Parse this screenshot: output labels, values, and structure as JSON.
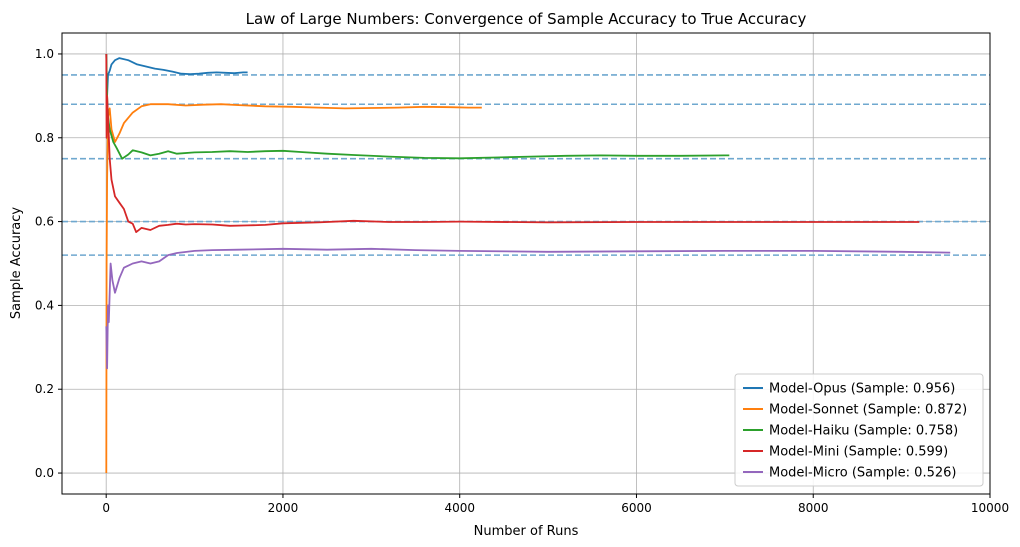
{
  "chart_data": {
    "type": "line",
    "title": "Law of Large Numbers: Convergence of Sample Accuracy to True Accuracy",
    "xlabel": "Number of Runs",
    "ylabel": "Sample Accuracy",
    "xlim": [
      -500,
      10000
    ],
    "ylim": [
      -0.05,
      1.05
    ],
    "xticks": [
      0,
      2000,
      4000,
      6000,
      8000,
      10000
    ],
    "xtick_labels": [
      "0",
      "2000",
      "4000",
      "6000",
      "8000",
      "10000"
    ],
    "yticks": [
      0.0,
      0.2,
      0.4,
      0.6,
      0.8,
      1.0
    ],
    "ytick_labels": [
      "0.0",
      "0.2",
      "0.4",
      "0.6",
      "0.8",
      "1.0"
    ],
    "grid": true,
    "legend_position": "lower-right",
    "reference_lines": {
      "color": "#6fa8cf",
      "style": "dashed",
      "values": [
        0.95,
        0.88,
        0.75,
        0.6,
        0.52
      ]
    },
    "series": [
      {
        "name": "Model-Opus (Sample: 0.956)",
        "color": "#1f77b4",
        "points": [
          [
            1,
            1.0
          ],
          [
            10,
            0.9
          ],
          [
            20,
            0.95
          ],
          [
            40,
            0.96
          ],
          [
            60,
            0.975
          ],
          [
            100,
            0.985
          ],
          [
            150,
            0.99
          ],
          [
            250,
            0.985
          ],
          [
            350,
            0.975
          ],
          [
            450,
            0.97
          ],
          [
            550,
            0.965
          ],
          [
            650,
            0.962
          ],
          [
            750,
            0.958
          ],
          [
            850,
            0.953
          ],
          [
            950,
            0.952
          ],
          [
            1050,
            0.953
          ],
          [
            1150,
            0.955
          ],
          [
            1250,
            0.956
          ],
          [
            1350,
            0.955
          ],
          [
            1450,
            0.954
          ],
          [
            1550,
            0.956
          ],
          [
            1600,
            0.956
          ]
        ]
      },
      {
        "name": "Model-Sonnet (Sample: 0.872)",
        "color": "#ff7f0e",
        "points": [
          [
            1,
            0.0
          ],
          [
            5,
            0.5
          ],
          [
            10,
            0.7
          ],
          [
            20,
            0.85
          ],
          [
            40,
            0.87
          ],
          [
            60,
            0.82
          ],
          [
            100,
            0.79
          ],
          [
            150,
            0.81
          ],
          [
            200,
            0.835
          ],
          [
            300,
            0.86
          ],
          [
            400,
            0.875
          ],
          [
            500,
            0.88
          ],
          [
            700,
            0.88
          ],
          [
            900,
            0.877
          ],
          [
            1100,
            0.879
          ],
          [
            1300,
            0.88
          ],
          [
            1500,
            0.878
          ],
          [
            1800,
            0.875
          ],
          [
            2100,
            0.874
          ],
          [
            2400,
            0.872
          ],
          [
            2700,
            0.87
          ],
          [
            3000,
            0.871
          ],
          [
            3300,
            0.872
          ],
          [
            3600,
            0.874
          ],
          [
            3900,
            0.873
          ],
          [
            4100,
            0.872
          ],
          [
            4250,
            0.872
          ]
        ]
      },
      {
        "name": "Model-Haiku (Sample: 0.758)",
        "color": "#2ca02c",
        "points": [
          [
            1,
            1.0
          ],
          [
            10,
            0.9
          ],
          [
            20,
            0.85
          ],
          [
            40,
            0.82
          ],
          [
            80,
            0.79
          ],
          [
            120,
            0.775
          ],
          [
            180,
            0.75
          ],
          [
            250,
            0.76
          ],
          [
            300,
            0.77
          ],
          [
            400,
            0.765
          ],
          [
            500,
            0.758
          ],
          [
            600,
            0.762
          ],
          [
            700,
            0.768
          ],
          [
            800,
            0.762
          ],
          [
            1000,
            0.765
          ],
          [
            1200,
            0.766
          ],
          [
            1400,
            0.768
          ],
          [
            1600,
            0.766
          ],
          [
            1800,
            0.768
          ],
          [
            2000,
            0.769
          ],
          [
            2200,
            0.766
          ],
          [
            2500,
            0.762
          ],
          [
            2800,
            0.759
          ],
          [
            3200,
            0.755
          ],
          [
            3600,
            0.752
          ],
          [
            4000,
            0.751
          ],
          [
            4400,
            0.753
          ],
          [
            4800,
            0.755
          ],
          [
            5200,
            0.757
          ],
          [
            5600,
            0.758
          ],
          [
            6000,
            0.757
          ],
          [
            6500,
            0.757
          ],
          [
            7000,
            0.758
          ],
          [
            7050,
            0.758
          ]
        ]
      },
      {
        "name": "Model-Mini (Sample: 0.599)",
        "color": "#d62728",
        "points": [
          [
            1,
            1.0
          ],
          [
            5,
            0.8
          ],
          [
            10,
            0.9
          ],
          [
            20,
            0.85
          ],
          [
            40,
            0.75
          ],
          [
            60,
            0.7
          ],
          [
            100,
            0.66
          ],
          [
            150,
            0.645
          ],
          [
            200,
            0.63
          ],
          [
            250,
            0.6
          ],
          [
            300,
            0.595
          ],
          [
            340,
            0.575
          ],
          [
            400,
            0.585
          ],
          [
            500,
            0.58
          ],
          [
            600,
            0.59
          ],
          [
            700,
            0.592
          ],
          [
            800,
            0.595
          ],
          [
            900,
            0.593
          ],
          [
            1000,
            0.594
          ],
          [
            1200,
            0.593
          ],
          [
            1400,
            0.59
          ],
          [
            1600,
            0.591
          ],
          [
            1800,
            0.592
          ],
          [
            2000,
            0.596
          ],
          [
            2400,
            0.598
          ],
          [
            2800,
            0.602
          ],
          [
            3200,
            0.599
          ],
          [
            3600,
            0.599
          ],
          [
            4000,
            0.6
          ],
          [
            5000,
            0.598
          ],
          [
            6000,
            0.599
          ],
          [
            7000,
            0.599
          ],
          [
            8000,
            0.599
          ],
          [
            9000,
            0.599
          ],
          [
            9200,
            0.599
          ]
        ]
      },
      {
        "name": "Model-Micro (Sample: 0.526)",
        "color": "#9467bd",
        "points": [
          [
            1,
            0.35
          ],
          [
            10,
            0.25
          ],
          [
            20,
            0.4
          ],
          [
            30,
            0.36
          ],
          [
            50,
            0.5
          ],
          [
            70,
            0.46
          ],
          [
            100,
            0.43
          ],
          [
            150,
            0.465
          ],
          [
            200,
            0.49
          ],
          [
            300,
            0.5
          ],
          [
            400,
            0.505
          ],
          [
            500,
            0.5
          ],
          [
            600,
            0.505
          ],
          [
            700,
            0.52
          ],
          [
            800,
            0.525
          ],
          [
            1000,
            0.53
          ],
          [
            1200,
            0.532
          ],
          [
            1500,
            0.533
          ],
          [
            2000,
            0.535
          ],
          [
            2500,
            0.533
          ],
          [
            3000,
            0.535
          ],
          [
            3500,
            0.532
          ],
          [
            4000,
            0.53
          ],
          [
            5000,
            0.528
          ],
          [
            6000,
            0.529
          ],
          [
            7000,
            0.53
          ],
          [
            8000,
            0.53
          ],
          [
            9000,
            0.528
          ],
          [
            9550,
            0.526
          ]
        ]
      }
    ]
  }
}
